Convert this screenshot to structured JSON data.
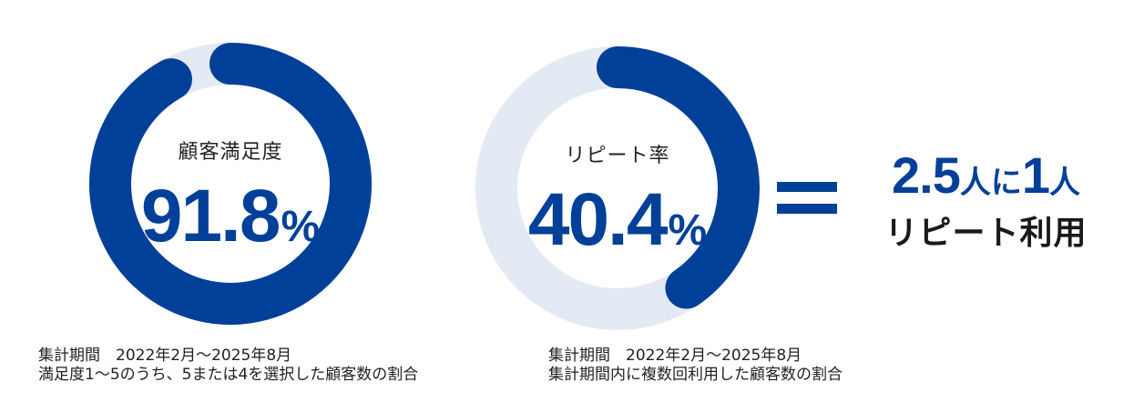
{
  "colors": {
    "accent": "#004098",
    "track": "#e4eaf4"
  },
  "chart_data": [
    {
      "type": "pie",
      "label": "顧客満足度",
      "value": 91.8,
      "value_text": "91.8",
      "unit": "%",
      "max": 100
    },
    {
      "type": "pie",
      "label": "リピート率",
      "value": 40.4,
      "value_text": "40.4",
      "unit": "%",
      "max": 100
    }
  ],
  "equals": {
    "symbol": "equals-icon"
  },
  "ratio": {
    "num1": "2.5",
    "unit1": "人に",
    "num2": "1",
    "unit2": "人",
    "subtitle": "リピート利用"
  },
  "notes": [
    {
      "line1": "集計期間　2022年2月〜2025年8月",
      "line2": "満足度1〜5のうち、5または4を選択した顧客数の割合"
    },
    {
      "line1": "集計期間　2022年2月〜2025年8月",
      "line2": "集計期間内に複数回利用した顧客数の割合"
    }
  ]
}
